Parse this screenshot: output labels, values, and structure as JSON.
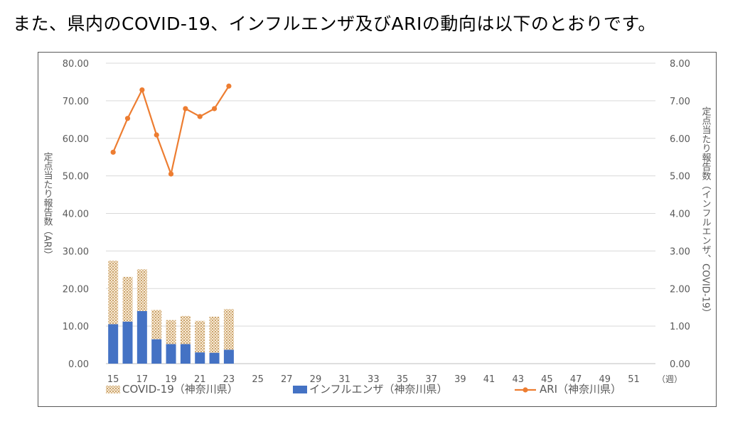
{
  "page": {
    "heading": "また、県内のCOVID-19、インフルエンザ及びARIの動向は以下のとおりです。"
  },
  "chart_data": {
    "type": "bar",
    "stacked": true,
    "x_unit_label": "（週）",
    "x_weeks": [
      15,
      16,
      17,
      18,
      19,
      20,
      21,
      22,
      23,
      24,
      25,
      26,
      27,
      28,
      29,
      30,
      31,
      32,
      33,
      34,
      35,
      36,
      37,
      38,
      39,
      40,
      41,
      42,
      43,
      44,
      45,
      46,
      47,
      48,
      49,
      50,
      51,
      52
    ],
    "x_tick_labels": [
      "15",
      "17",
      "19",
      "21",
      "23",
      "25",
      "27",
      "29",
      "31",
      "33",
      "35",
      "37",
      "39",
      "41",
      "43",
      "45",
      "47",
      "49",
      "51"
    ],
    "left_axis": {
      "label": "定点当たり報告数（ARI）",
      "ylim": [
        0,
        80
      ],
      "tick_labels": [
        "0.00",
        "10.00",
        "20.00",
        "30.00",
        "40.00",
        "50.00",
        "60.00",
        "70.00",
        "80.00"
      ]
    },
    "right_axis": {
      "label": "定点当たり報告数（インフルエンザ、COVID-19）",
      "ylim": [
        0,
        8
      ],
      "tick_labels": [
        "0.00",
        "1.00",
        "2.00",
        "3.00",
        "4.00",
        "5.00",
        "6.00",
        "7.00",
        "8.00"
      ]
    },
    "grid": true,
    "legend_position": "bottom",
    "series": [
      {
        "name": "インフルエンザ（神奈川県）",
        "type": "bar",
        "axis": "right",
        "color": "#4472c4",
        "weeks": [
          15,
          16,
          17,
          18,
          19,
          20,
          21,
          22,
          23
        ],
        "values": [
          1.05,
          1.12,
          1.4,
          0.65,
          0.52,
          0.52,
          0.3,
          0.29,
          0.37
        ]
      },
      {
        "name": "COVID-19（神奈川県）",
        "type": "bar",
        "axis": "right",
        "pattern": "dotted",
        "color": "#c9a26b",
        "weeks": [
          15,
          16,
          17,
          18,
          19,
          20,
          21,
          22,
          23
        ],
        "values": [
          1.69,
          1.19,
          1.11,
          0.78,
          0.64,
          0.75,
          0.84,
          0.96,
          1.08
        ]
      },
      {
        "name": "ARI（神奈川県）",
        "type": "line",
        "axis": "left",
        "color": "#ed7d31",
        "weeks": [
          15,
          16,
          17,
          18,
          19,
          20,
          21,
          22,
          23
        ],
        "values": [
          56.3,
          65.3,
          72.9,
          60.9,
          50.5,
          67.9,
          65.8,
          67.9,
          73.9
        ]
      }
    ]
  }
}
